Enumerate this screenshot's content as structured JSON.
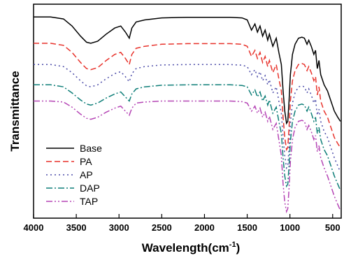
{
  "chart_data": {
    "type": "line",
    "title": "",
    "xlabel": "Wavelength(cm",
    "xlabel_superscript": "-1",
    "xlabel_suffix": ")",
    "ylabel": "Transmittance",
    "xlim": [
      4000,
      400
    ],
    "x_reversed": true,
    "x_ticks": [
      4000,
      3500,
      3000,
      2500,
      2000,
      1500,
      1000,
      500
    ],
    "x_tick_labels": [
      "4000",
      "3500",
      "3000",
      "2500",
      "2000",
      "1500",
      "1000",
      "500"
    ],
    "ylim": [
      0,
      100
    ],
    "y_tick_labels_shown": false,
    "grid": false,
    "legend_position": "bottom-left",
    "series": [
      {
        "name": "Base",
        "color": "#000000",
        "dash": "solid",
        "x": [
          4000,
          3800,
          3650,
          3550,
          3450,
          3380,
          3330,
          3250,
          3150,
          3050,
          2980,
          2925,
          2880,
          2850,
          2800,
          2700,
          2500,
          2200,
          1900,
          1700,
          1560,
          1500,
          1450,
          1410,
          1380,
          1350,
          1320,
          1290,
          1260,
          1240,
          1200,
          1160,
          1130,
          1100,
          1080,
          1060,
          1040,
          1025,
          1010,
          995,
          970,
          940,
          900,
          860,
          830,
          800,
          780,
          750,
          720,
          700,
          680,
          660,
          640,
          600,
          560,
          520,
          480,
          440,
          410
        ],
        "y": [
          96.5,
          96.5,
          95.5,
          92,
          87,
          84,
          83.5,
          84.5,
          88,
          91,
          92,
          89,
          86,
          91,
          94,
          95,
          96,
          96.3,
          96.3,
          96.3,
          96,
          95,
          90,
          93,
          89,
          92,
          87,
          90,
          85,
          88,
          82,
          86,
          79,
          73,
          60,
          50,
          44,
          45,
          55,
          68,
          78,
          83,
          86,
          86.5,
          86,
          83,
          85,
          82,
          78,
          80,
          71,
          75,
          68,
          63,
          60,
          55,
          50,
          47,
          45
        ]
      },
      {
        "name": "PA",
        "color": "#e8322b",
        "dash": "8,4",
        "x": [
          4000,
          3800,
          3650,
          3550,
          3450,
          3380,
          3330,
          3250,
          3150,
          3050,
          2980,
          2925,
          2880,
          2850,
          2800,
          2700,
          2500,
          2200,
          1900,
          1700,
          1560,
          1500,
          1450,
          1410,
          1380,
          1350,
          1320,
          1290,
          1260,
          1240,
          1200,
          1160,
          1130,
          1100,
          1080,
          1060,
          1040,
          1025,
          1010,
          995,
          970,
          940,
          900,
          860,
          830,
          800,
          780,
          750,
          720,
          700,
          680,
          660,
          640,
          600,
          560,
          520,
          480,
          440,
          410
        ],
        "y": [
          83.5,
          83.5,
          82.5,
          79,
          74,
          71,
          70.5,
          71.5,
          75,
          78,
          79,
          76,
          73,
          78,
          81,
          82,
          83,
          83.3,
          83.3,
          83.3,
          83,
          82,
          77,
          80,
          76,
          79,
          74,
          77,
          72,
          75,
          69,
          73,
          66,
          60,
          47,
          37,
          31,
          32,
          42,
          55,
          65,
          70,
          73,
          73.5,
          73,
          70,
          72,
          69,
          65,
          67,
          58,
          62,
          55,
          50,
          47,
          42,
          37,
          34,
          32
        ]
      },
      {
        "name": "AP",
        "color": "#4b4ba8",
        "dash": "2,4",
        "x": [
          4000,
          3800,
          3650,
          3550,
          3450,
          3380,
          3330,
          3250,
          3150,
          3050,
          2980,
          2925,
          2880,
          2850,
          2800,
          2700,
          2500,
          2200,
          1900,
          1700,
          1560,
          1500,
          1450,
          1410,
          1380,
          1350,
          1320,
          1290,
          1260,
          1240,
          1200,
          1160,
          1130,
          1100,
          1080,
          1060,
          1040,
          1025,
          1010,
          995,
          970,
          940,
          900,
          860,
          830,
          800,
          780,
          750,
          720,
          700,
          680,
          660,
          640,
          600,
          560,
          520,
          480,
          440,
          410
        ],
        "y": [
          73,
          73,
          72,
          69,
          65,
          62.5,
          62,
          63,
          66,
          68.5,
          69.5,
          67,
          64.5,
          68.5,
          71,
          72,
          72.8,
          73,
          73,
          73,
          72.7,
          72,
          68,
          70.5,
          67,
          69.5,
          65,
          67.5,
          63,
          65.5,
          59,
          62,
          55,
          49,
          37,
          28,
          22,
          23,
          32,
          44,
          54,
          59,
          62,
          62.5,
          62,
          59,
          61,
          58,
          54,
          56,
          48,
          51,
          45,
          40,
          37,
          32,
          27,
          23,
          20
        ]
      },
      {
        "name": "DAP",
        "color": "#0e7e78",
        "dash": "9,3,2,3",
        "x": [
          4000,
          3800,
          3650,
          3550,
          3450,
          3380,
          3330,
          3250,
          3150,
          3050,
          2980,
          2925,
          2880,
          2850,
          2800,
          2700,
          2500,
          2200,
          1900,
          1700,
          1560,
          1500,
          1450,
          1410,
          1380,
          1350,
          1320,
          1290,
          1260,
          1240,
          1200,
          1160,
          1130,
          1100,
          1080,
          1060,
          1040,
          1025,
          1010,
          995,
          970,
          940,
          900,
          860,
          830,
          800,
          780,
          750,
          720,
          700,
          680,
          660,
          640,
          600,
          560,
          520,
          480,
          440,
          410
        ],
        "y": [
          63,
          63,
          62,
          59,
          55.5,
          53.5,
          53,
          54,
          56.5,
          58.5,
          59.5,
          57,
          55,
          58.5,
          61,
          62,
          62.8,
          63,
          63,
          63,
          62.7,
          62,
          58,
          60.5,
          57,
          59.5,
          55,
          57.5,
          53,
          55.5,
          49,
          52,
          45,
          39,
          27,
          18,
          13,
          14,
          23,
          35,
          45,
          50,
          53,
          53.5,
          53,
          50,
          52,
          49,
          45,
          47,
          39,
          42,
          36,
          31,
          28,
          23,
          18,
          14,
          11
        ]
      },
      {
        "name": "TAP",
        "color": "#b545b5",
        "dash": "9,3,2,3,2,3",
        "x": [
          4000,
          3800,
          3650,
          3550,
          3450,
          3380,
          3330,
          3250,
          3150,
          3050,
          2980,
          2925,
          2880,
          2850,
          2800,
          2700,
          2500,
          2200,
          1900,
          1700,
          1560,
          1500,
          1450,
          1410,
          1380,
          1350,
          1320,
          1290,
          1260,
          1240,
          1200,
          1160,
          1130,
          1100,
          1080,
          1060,
          1040,
          1025,
          1010,
          995,
          970,
          940,
          900,
          860,
          830,
          800,
          780,
          750,
          720,
          700,
          680,
          660,
          640,
          600,
          560,
          520,
          480,
          440,
          410
        ],
        "y": [
          55,
          55,
          54.5,
          52,
          48.5,
          46.5,
          46,
          47,
          49.5,
          51.5,
          52.5,
          50,
          48,
          51.5,
          54,
          54.5,
          55,
          55,
          55,
          55,
          54.7,
          54,
          50,
          52.5,
          49,
          51.5,
          47,
          49.5,
          45,
          47.5,
          41,
          44,
          36,
          28,
          14,
          5,
          0.5,
          2,
          12,
          25,
          36,
          42,
          45,
          45.5,
          45,
          41,
          43,
          40,
          36,
          38,
          30,
          33,
          27,
          22,
          18,
          13,
          8,
          4,
          1
        ]
      }
    ]
  }
}
